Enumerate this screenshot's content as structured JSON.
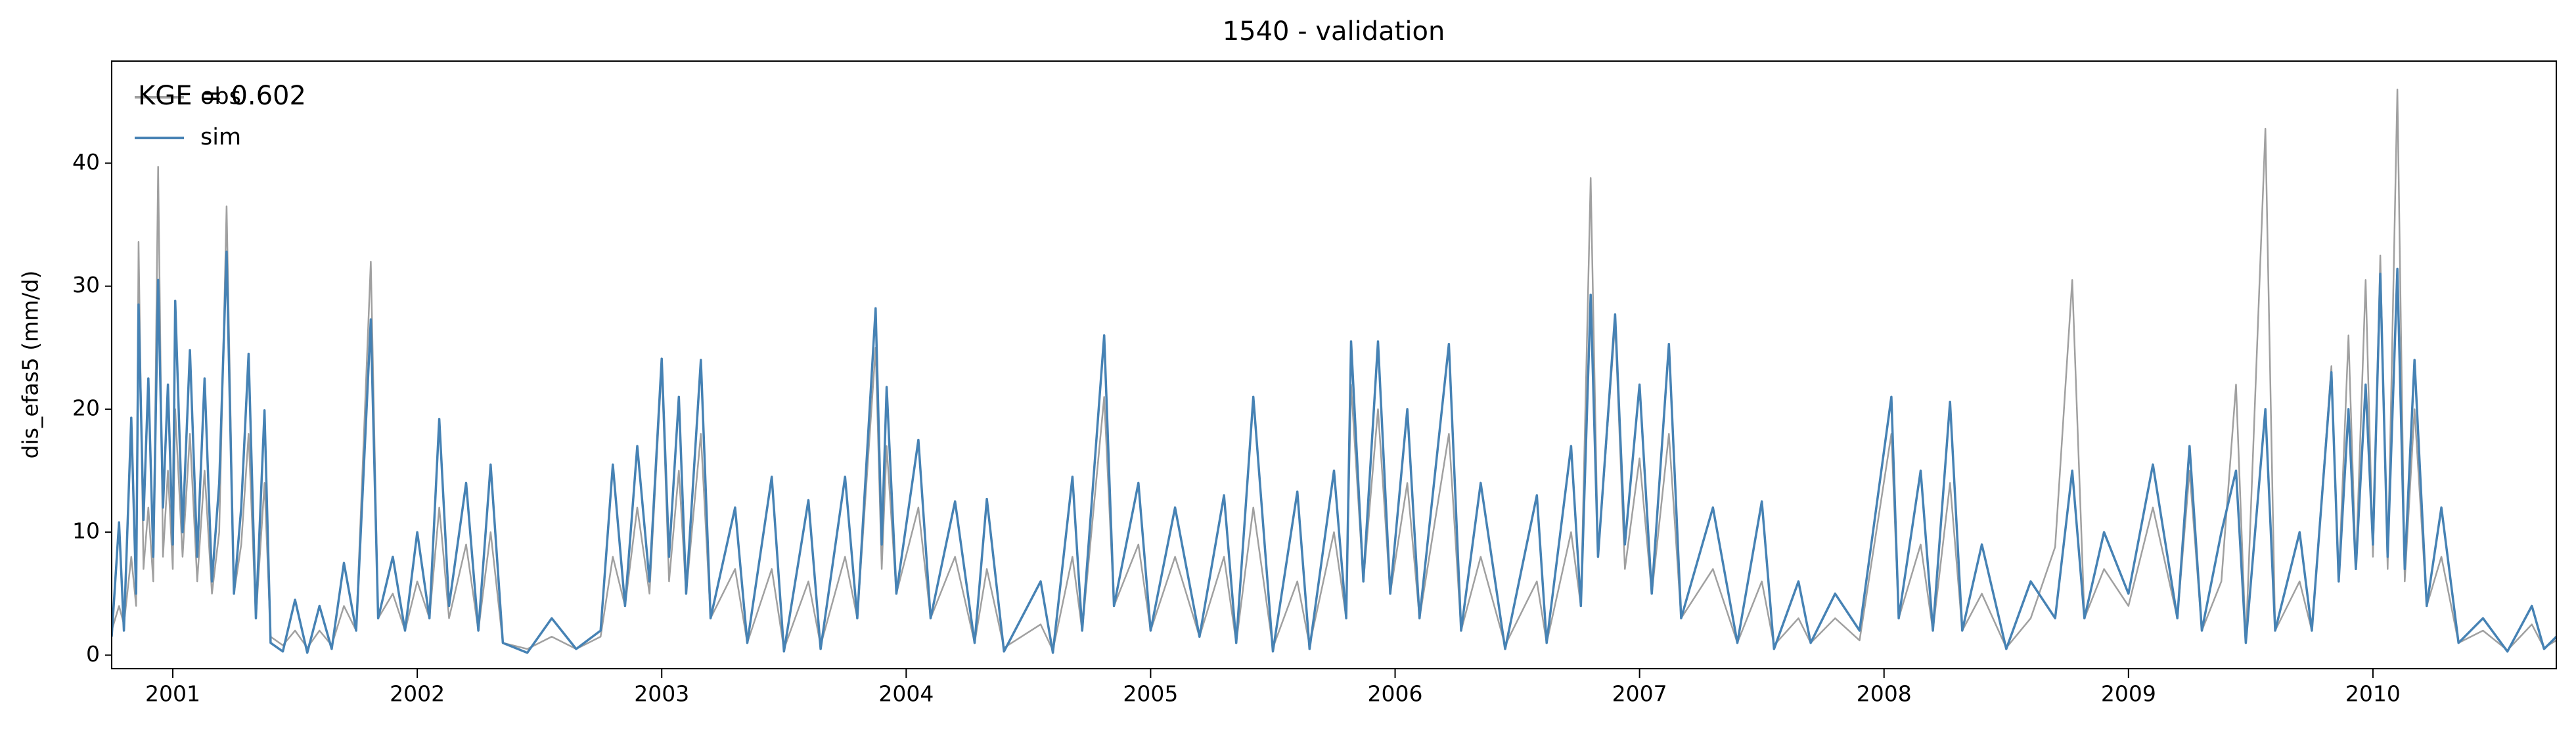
{
  "chart_data": {
    "type": "line",
    "title": "1540 - validation",
    "ylabel": "dis_efas5 (mm/d)",
    "annotation": "KGE = 0.602",
    "legend": "upper left",
    "xlim": [
      2000.75,
      2010.75
    ],
    "xticks": [
      2001,
      2002,
      2003,
      2004,
      2005,
      2006,
      2007,
      2008,
      2009,
      2010
    ],
    "ylim": [
      -1.1,
      48.3
    ],
    "yticks": [
      0,
      10,
      20,
      30,
      40
    ],
    "x": [
      2000.75,
      2000.78,
      2000.8,
      2000.83,
      2000.85,
      2000.86,
      2000.88,
      2000.9,
      2000.92,
      2000.94,
      2000.96,
      2000.98,
      2001.0,
      2001.01,
      2001.04,
      2001.07,
      2001.1,
      2001.13,
      2001.16,
      2001.19,
      2001.22,
      2001.25,
      2001.28,
      2001.31,
      2001.34,
      2001.375,
      2001.4,
      2001.45,
      2001.5,
      2001.55,
      2001.6,
      2001.65,
      2001.7,
      2001.75,
      2001.81,
      2001.84,
      2001.9,
      2001.95,
      2002.0,
      2002.05,
      2002.09,
      2002.13,
      2002.2,
      2002.25,
      2002.3,
      2002.35,
      2002.45,
      2002.55,
      2002.65,
      2002.75,
      2002.8,
      2002.85,
      2002.9,
      2002.95,
      2003.0,
      2003.03,
      2003.07,
      2003.1,
      2003.16,
      2003.2,
      2003.3,
      2003.35,
      2003.45,
      2003.5,
      2003.6,
      2003.65,
      2003.75,
      2003.8,
      2003.875,
      2003.9,
      2003.92,
      2003.96,
      2004.05,
      2004.1,
      2004.2,
      2004.28,
      2004.33,
      2004.4,
      2004.55,
      2004.6,
      2004.68,
      2004.72,
      2004.81,
      2004.85,
      2004.95,
      2005.0,
      2005.1,
      2005.2,
      2005.3,
      2005.35,
      2005.42,
      2005.5,
      2005.6,
      2005.65,
      2005.75,
      2005.8,
      2005.82,
      2005.87,
      2005.93,
      2005.98,
      2006.05,
      2006.1,
      2006.22,
      2006.27,
      2006.35,
      2006.45,
      2006.58,
      2006.62,
      2006.72,
      2006.76,
      2006.8,
      2006.83,
      2006.9,
      2006.94,
      2007.0,
      2007.05,
      2007.12,
      2007.17,
      2007.3,
      2007.4,
      2007.5,
      2007.55,
      2007.65,
      2007.7,
      2007.8,
      2007.9,
      2008.03,
      2008.06,
      2008.15,
      2008.2,
      2008.27,
      2008.32,
      2008.4,
      2008.5,
      2008.6,
      2008.7,
      2008.77,
      2008.82,
      2008.9,
      2009.0,
      2009.1,
      2009.2,
      2009.25,
      2009.3,
      2009.38,
      2009.44,
      2009.48,
      2009.56,
      2009.6,
      2009.7,
      2009.75,
      2009.83,
      2009.86,
      2009.9,
      2009.93,
      2009.97,
      2010.0,
      2010.03,
      2010.06,
      2010.1,
      2010.13,
      2010.17,
      2010.22,
      2010.28,
      2010.35,
      2010.45,
      2010.55,
      2010.65,
      2010.7,
      2010.75
    ],
    "series": [
      {
        "name": "obs",
        "color": "#a0a0a0",
        "values": [
          2,
          4,
          2.5,
          8,
          4,
          33.6,
          7,
          12,
          6,
          39.7,
          8,
          15,
          7,
          20,
          8,
          18,
          6,
          15,
          5,
          10,
          36.5,
          5,
          9,
          18,
          3,
          14,
          1.5,
          0.8,
          2,
          0.6,
          2,
          0.8,
          4,
          2,
          32,
          3,
          5,
          2,
          6,
          3,
          12,
          3,
          9,
          2,
          10,
          1,
          0.5,
          1.5,
          0.5,
          1.5,
          8,
          4,
          12,
          5,
          23.5,
          6,
          15,
          5,
          18,
          3,
          7,
          1,
          7,
          0.5,
          6,
          0.8,
          8,
          3,
          25,
          7,
          17,
          5,
          12,
          3,
          8,
          1,
          7,
          0.6,
          2.5,
          0.4,
          8,
          2,
          21,
          4,
          9,
          2,
          8,
          1.5,
          8,
          1,
          12,
          0.6,
          6,
          0.8,
          10,
          3,
          22,
          6,
          20,
          5,
          14,
          3,
          18,
          2,
          8,
          0.8,
          6,
          1,
          10,
          4,
          38.8,
          8,
          27,
          7,
          16,
          5,
          18,
          3,
          7,
          1,
          6,
          0.8,
          3,
          1,
          3,
          1.2,
          18,
          3,
          9,
          2,
          14,
          2,
          5,
          0.6,
          3,
          8.8,
          30.5,
          3,
          7,
          4,
          12,
          3,
          15,
          2,
          6,
          22,
          1,
          42.8,
          2,
          6,
          2,
          23.5,
          6,
          26,
          7,
          30.5,
          8,
          32.5,
          7,
          46,
          6,
          20,
          4,
          8,
          1,
          2,
          0.4,
          2.5,
          0.6,
          1.2
        ]
      },
      {
        "name": "sim",
        "color": "#4682b4",
        "values": [
          1.5,
          10.8,
          2,
          19.3,
          5,
          28.5,
          11,
          22.5,
          8,
          30.5,
          12,
          22,
          9,
          28.8,
          10,
          24.8,
          8,
          22.5,
          6,
          14,
          32.8,
          5,
          12,
          24.5,
          3,
          19.9,
          1,
          0.3,
          4.5,
          0.2,
          4,
          0.5,
          7.5,
          2,
          27.3,
          3,
          8,
          2,
          10,
          3,
          19.2,
          4,
          14,
          2,
          15.5,
          1,
          0.2,
          3,
          0.5,
          2,
          15.5,
          4,
          17,
          6,
          24.1,
          8,
          21,
          5,
          24,
          3,
          12,
          1,
          14.5,
          0.3,
          12.6,
          0.5,
          14.5,
          3,
          28.2,
          9,
          21.8,
          5,
          17.5,
          3,
          12.5,
          1,
          12.7,
          0.3,
          6,
          0.2,
          14.5,
          2,
          26,
          4,
          14,
          2,
          12,
          1.5,
          13,
          1,
          21,
          0.3,
          13.3,
          0.5,
          15,
          3,
          25.5,
          6,
          25.5,
          5,
          20,
          3,
          25.3,
          2,
          14,
          0.5,
          13,
          1,
          17,
          4,
          29.3,
          8,
          27.7,
          9,
          22,
          5,
          25.3,
          3,
          12,
          1,
          12.5,
          0.5,
          6,
          1,
          5,
          2,
          21,
          3,
          15,
          2,
          20.6,
          2,
          9,
          0.5,
          6,
          3,
          15,
          3,
          10,
          5,
          15.5,
          3,
          17,
          2,
          10,
          15,
          1,
          20,
          2,
          10,
          2,
          23,
          6,
          20,
          7,
          22,
          9,
          31,
          8,
          31.4,
          7,
          24,
          4,
          12,
          1,
          3,
          0.3,
          4,
          0.5,
          1.5
        ]
      }
    ]
  }
}
